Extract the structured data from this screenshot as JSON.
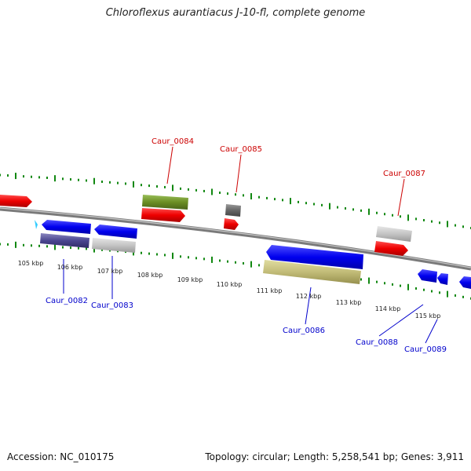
{
  "title": "Chloroflexus aurantiacus J-10-fl, complete genome",
  "footer": {
    "accession": "Accession: NC_010175",
    "summary": "Topology: circular; Length: 5,258,541 bp; Genes: 3,911"
  },
  "ruler": {
    "unit": "kbp",
    "labels": [
      "105 kbp",
      "106 kbp",
      "107 kbp",
      "108 kbp",
      "109 kbp",
      "110 kbp",
      "111 kbp",
      "112 kbp",
      "113 kbp",
      "114 kbp",
      "115 kbp"
    ]
  },
  "genes": [
    {
      "name": "Caur_0082",
      "strand": "-",
      "label_color": "#0000cc"
    },
    {
      "name": "Caur_0083",
      "strand": "-",
      "label_color": "#0000cc"
    },
    {
      "name": "Caur_0084",
      "strand": "+",
      "label_color": "#cc0000"
    },
    {
      "name": "Caur_0085",
      "strand": "+",
      "label_color": "#cc0000"
    },
    {
      "name": "Caur_0086",
      "strand": "-",
      "label_color": "#0000cc"
    },
    {
      "name": "Caur_0087",
      "strand": "+",
      "label_color": "#cc0000"
    },
    {
      "name": "Caur_0088",
      "strand": "-",
      "label_color": "#0000cc"
    },
    {
      "name": "Caur_0089",
      "strand": "-",
      "label_color": "#0000cc"
    }
  ],
  "colors": {
    "forward_cds": "#ee1111",
    "reverse_cds": "#1111ee",
    "ticks": "#118811",
    "backbone": "#808080",
    "forward_label": "#cc0000",
    "reverse_label": "#0000cc"
  }
}
